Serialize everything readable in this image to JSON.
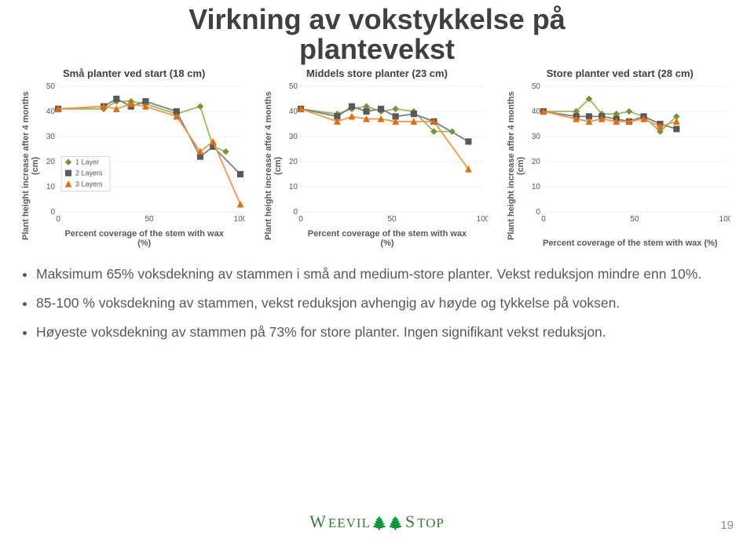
{
  "title_line1": "Virkning av vokstykkelse på",
  "title_line2": "plantevekst",
  "colors": {
    "series1_line": "#9bbb59",
    "series1_marker": "#77933c",
    "series2_line": "#7f7f7f",
    "series2_marker": "#595959",
    "series3_line": "#f79646",
    "series3_marker": "#e46c0a",
    "grid": "#d9d9d9",
    "text": "#595959",
    "accent_green": "#3b7a3b"
  },
  "axes": {
    "xlim": [
      0,
      100
    ],
    "ylim": [
      0,
      50
    ],
    "xticks": [
      0,
      50,
      100
    ],
    "yticks": [
      0,
      10,
      20,
      30,
      40,
      50
    ]
  },
  "line_width": 1.8,
  "marker_size": 5,
  "legend": {
    "items": [
      "1 Layer",
      "2 Layers",
      "3 Layers"
    ],
    "markers": [
      "diamond",
      "square",
      "triangle"
    ]
  },
  "ylabel": "Plant height increase after 4 months (cm)",
  "xlabel_short": "Percent coverage of the stem with wax (%)",
  "charts": [
    {
      "heading": "Små planter ved start (18 cm)",
      "show_legend": true,
      "xlabel": "Percent coverage of the stem with wax\n(%)",
      "series": [
        {
          "name": "1 Layer",
          "x": [
            0,
            25,
            32,
            40,
            48,
            65,
            78,
            85,
            92
          ],
          "y": [
            41,
            41,
            44,
            44,
            43,
            39,
            42,
            26,
            24
          ]
        },
        {
          "name": "2 Layers",
          "x": [
            0,
            25,
            32,
            40,
            48,
            65,
            78,
            85,
            100
          ],
          "y": [
            41,
            42,
            45,
            42,
            44,
            40,
            22,
            26,
            15
          ]
        },
        {
          "name": "3 Layers",
          "x": [
            0,
            25,
            32,
            40,
            48,
            65,
            78,
            85,
            100
          ],
          "y": [
            41,
            42,
            41,
            43,
            42,
            38,
            24,
            28,
            3
          ]
        }
      ]
    },
    {
      "heading": "Middels store planter (23 cm)",
      "show_legend": false,
      "xlabel": "Percent coverage of the stem with wax\n(%)",
      "series": [
        {
          "name": "1 Layer",
          "x": [
            0,
            20,
            28,
            36,
            44,
            52,
            62,
            73,
            83
          ],
          "y": [
            41,
            39,
            41,
            42,
            40,
            41,
            40,
            32,
            32
          ]
        },
        {
          "name": "2 Layers",
          "x": [
            0,
            20,
            28,
            36,
            44,
            52,
            62,
            73,
            92
          ],
          "y": [
            41,
            38,
            42,
            40,
            41,
            38,
            39,
            36,
            28
          ]
        },
        {
          "name": "3 Layers",
          "x": [
            0,
            20,
            28,
            36,
            44,
            52,
            62,
            73,
            92
          ],
          "y": [
            41,
            36,
            38,
            37,
            37,
            36,
            36,
            36,
            17
          ]
        }
      ]
    },
    {
      "heading": "Store planter ved start (28 cm)",
      "show_legend": false,
      "xlabel": "Percent coverage of the stem with wax (%)",
      "series": [
        {
          "name": "1 Layer",
          "x": [
            0,
            18,
            25,
            32,
            40,
            47,
            55,
            64,
            73
          ],
          "y": [
            40,
            40,
            45,
            39,
            39,
            40,
            38,
            32,
            38
          ]
        },
        {
          "name": "2 Layers",
          "x": [
            0,
            18,
            25,
            32,
            40,
            47,
            55,
            64,
            73
          ],
          "y": [
            40,
            38,
            38,
            38,
            37,
            36,
            38,
            35,
            33
          ]
        },
        {
          "name": "3 Layers",
          "x": [
            0,
            18,
            25,
            32,
            40,
            47,
            55,
            64,
            73
          ],
          "y": [
            40,
            37,
            36,
            37,
            36,
            36,
            37,
            34,
            36
          ]
        }
      ]
    }
  ],
  "bullets": [
    "Maksimum 65% voksdekning av stammen i små and medium-store planter. Vekst reduksjon mindre enn 10%.",
    "85-100 % voksdekning av stammen, vekst reduksjon avhengig av høyde og tykkelse på voksen.",
    "Høyeste voksdekning av stammen på 73% for store planter. Ingen signifikant vekst reduksjon."
  ],
  "logo": {
    "left": "W",
    "mid": "EEVIL",
    "right": "STOP"
  },
  "page": "19"
}
